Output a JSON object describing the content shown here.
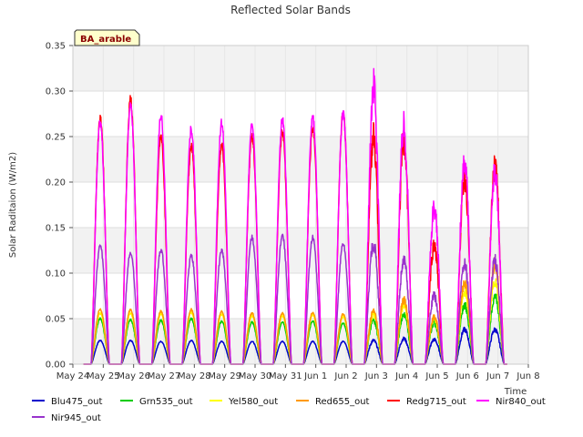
{
  "chart_data": {
    "type": "line",
    "title": "Reflected Solar Bands",
    "xlabel": "Time",
    "ylabel": "Solar Raditaion (W/m2)",
    "badge": "BA_arable",
    "ylim": [
      0,
      0.35
    ],
    "yticks": [
      0.0,
      0.05,
      0.1,
      0.15,
      0.2,
      0.25,
      0.3,
      0.35
    ],
    "ytick_labels": [
      "0.00",
      "0.05",
      "0.10",
      "0.15",
      "0.20",
      "0.25",
      "0.30",
      "0.35"
    ],
    "xlim": [
      0,
      15
    ],
    "xticks": [
      0,
      1,
      2,
      3,
      4,
      5,
      6,
      7,
      8,
      9,
      10,
      11,
      12,
      13,
      14,
      15
    ],
    "xtick_labels": [
      "May 24",
      "May 25",
      "May 26",
      "May 27",
      "May 28",
      "May 29",
      "May 30",
      "May 31",
      "Jun 1",
      "Jun 2",
      "Jun 3",
      "Jun 4",
      "Jun 5",
      "Jun 6",
      "Jun 7",
      "Jun 8"
    ],
    "grid": true,
    "band_shading": true,
    "legend_position": "bottom",
    "day_centers": [
      0.9,
      1.9,
      2.9,
      3.9,
      4.9,
      5.9,
      6.9,
      7.9,
      8.9,
      9.9,
      10.9,
      11.9,
      12.9,
      13.9
    ],
    "series": [
      {
        "name": "Blu475_out",
        "color": "#0000cc",
        "peaks": [
          0.026,
          0.026,
          0.025,
          0.026,
          0.025,
          0.025,
          0.025,
          0.025,
          0.025,
          0.026,
          0.028,
          0.027,
          0.038,
          0.038
        ]
      },
      {
        "name": "Grn535_out",
        "color": "#00cc00",
        "peaks": [
          0.05,
          0.049,
          0.048,
          0.05,
          0.047,
          0.046,
          0.046,
          0.047,
          0.045,
          0.048,
          0.055,
          0.045,
          0.065,
          0.075
        ]
      },
      {
        "name": "Yel580_out",
        "color": "#ffff00",
        "peaks": [
          0.056,
          0.056,
          0.055,
          0.057,
          0.055,
          0.053,
          0.053,
          0.054,
          0.052,
          0.055,
          0.065,
          0.05,
          0.08,
          0.09
        ]
      },
      {
        "name": "Red655_out",
        "color": "#ff9900",
        "peaks": [
          0.06,
          0.06,
          0.058,
          0.06,
          0.058,
          0.056,
          0.056,
          0.057,
          0.055,
          0.058,
          0.07,
          0.052,
          0.09,
          0.11
        ]
      },
      {
        "name": "Redg715_out",
        "color": "#ff0000",
        "peaks": [
          0.27,
          0.29,
          0.25,
          0.24,
          0.24,
          0.25,
          0.255,
          0.26,
          0.275,
          0.25,
          0.245,
          0.13,
          0.2,
          0.218
        ]
      },
      {
        "name": "Nir840_out",
        "color": "#ff00ff",
        "peaks": [
          0.265,
          0.285,
          0.272,
          0.258,
          0.265,
          0.262,
          0.268,
          0.27,
          0.275,
          0.305,
          0.263,
          0.17,
          0.22,
          0.21
        ]
      },
      {
        "name": "Nir945_out",
        "color": "#9933cc",
        "peaks": [
          0.13,
          0.123,
          0.126,
          0.119,
          0.125,
          0.139,
          0.141,
          0.139,
          0.132,
          0.133,
          0.114,
          0.075,
          0.11,
          0.113
        ]
      }
    ]
  }
}
